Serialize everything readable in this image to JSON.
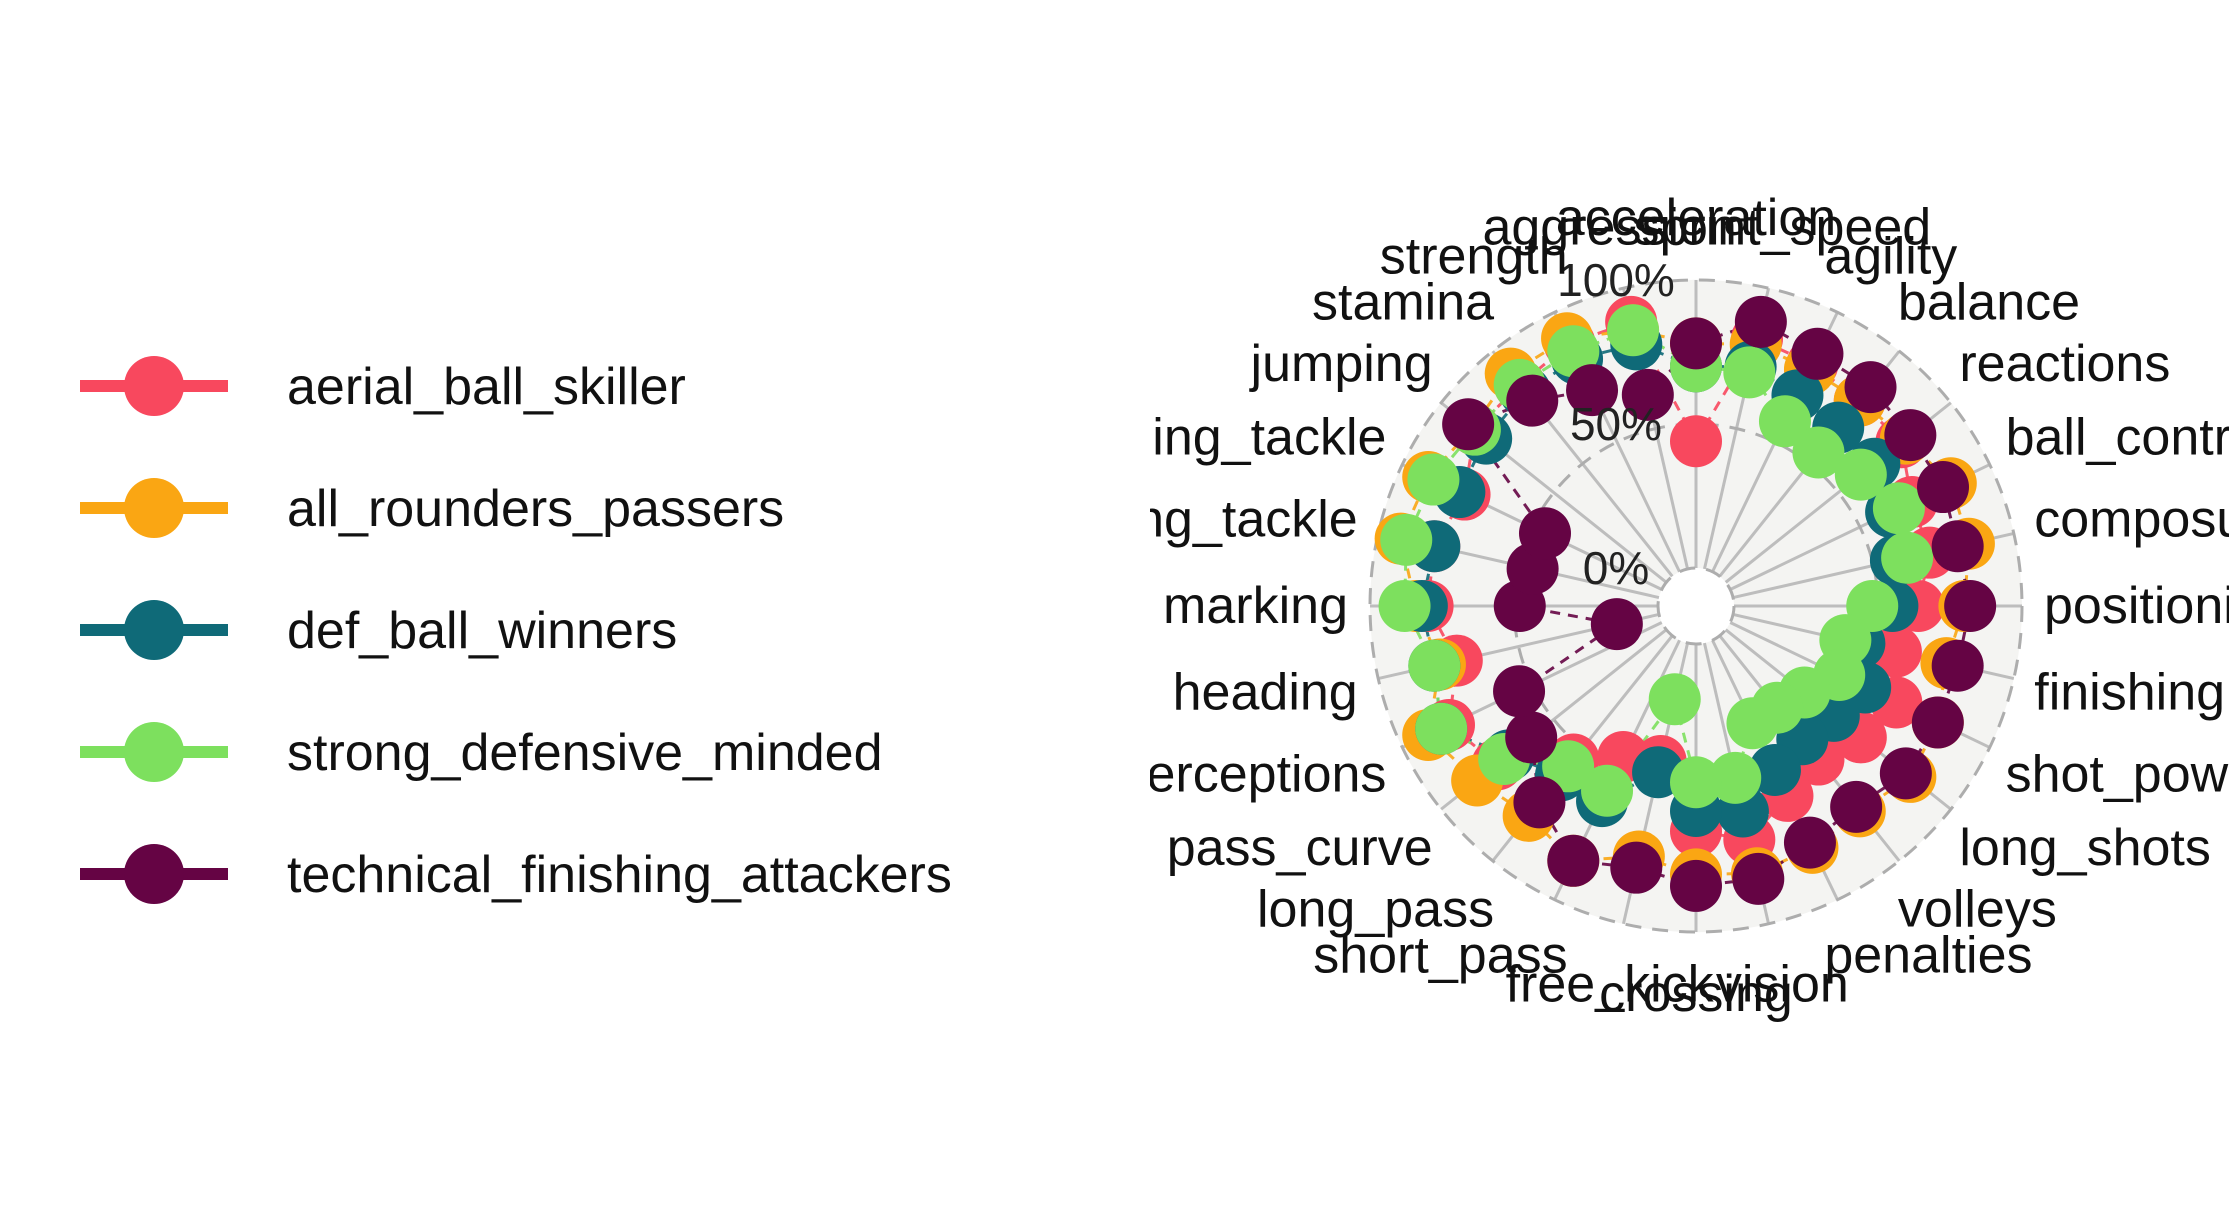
{
  "chart_data": {
    "type": "radar",
    "title": "",
    "axis_range": [
      0,
      1
    ],
    "radial_labels": [
      "0%",
      "50%",
      "100%"
    ],
    "grid": true,
    "legend_position": "left",
    "categories": [
      "acceleration",
      "sprint_speed",
      "agility",
      "balance",
      "reactions",
      "ball_control",
      "composure",
      "positioning",
      "finishing",
      "shot_power",
      "long_shots",
      "volleys",
      "penalties",
      "vision",
      "crossing",
      "free_kick",
      "short_pass",
      "long_pass",
      "pass_curve",
      "interceptions",
      "heading",
      "marking",
      "standing_tackle",
      "sliding_tackle",
      "jumping",
      "stamina",
      "strength",
      "aggression"
    ],
    "series": [
      {
        "name": "aerial_ball_skiller",
        "color": "#F8485E",
        "values": [
          0.44,
          0.82,
          0.8,
          0.78,
          0.78,
          0.7,
          0.7,
          0.64,
          0.58,
          0.64,
          0.6,
          0.55,
          0.6,
          0.7,
          0.65,
          0.42,
          0.45,
          0.55,
          0.75,
          0.82,
          0.72,
          0.8,
          0.8,
          0.76,
          0.85,
          0.85,
          0.88,
          0.88
        ]
      },
      {
        "name": "all_rounders_passers",
        "color": "#FAA613",
        "values": [
          0.78,
          0.8,
          0.78,
          0.78,
          0.8,
          0.85,
          0.84,
          0.8,
          0.76,
          0.8,
          0.82,
          0.78,
          0.8,
          0.82,
          0.8,
          0.76,
          0.85,
          0.8,
          0.84,
          0.9,
          0.78,
          0.84,
          0.92,
          0.9,
          0.86,
          0.9,
          0.9,
          0.85
        ]
      },
      {
        "name": "def_ball_winners",
        "color": "#0F6A78",
        "values": [
          0.7,
          0.72,
          0.68,
          0.66,
          0.66,
          0.62,
          0.58,
          0.55,
          0.45,
          0.52,
          0.48,
          0.46,
          0.5,
          0.6,
          0.58,
          0.46,
          0.62,
          0.62,
          0.7,
          0.85,
          0.8,
          0.82,
          0.8,
          0.78,
          0.8,
          0.82,
          0.82,
          0.8
        ]
      },
      {
        "name": "strong_defensive_minded",
        "color": "#7DE05E",
        "values": [
          0.7,
          0.7,
          0.58,
          0.55,
          0.6,
          0.65,
          0.62,
          0.48,
          0.4,
          0.42,
          0.35,
          0.32,
          0.32,
          0.48,
          0.48,
          0.2,
          0.58,
          0.58,
          0.72,
          0.85,
          0.8,
          0.88,
          0.9,
          0.88,
          0.85,
          0.85,
          0.85,
          0.85
        ]
      },
      {
        "name": "technical_finishing_attackers",
        "color": "#650444",
        "values": [
          0.78,
          0.88,
          0.84,
          0.84,
          0.82,
          0.82,
          0.8,
          0.82,
          0.8,
          0.8,
          0.8,
          0.76,
          0.78,
          0.84,
          0.84,
          0.8,
          0.85,
          0.74,
          0.6,
          0.55,
          0.15,
          0.48,
          0.45,
          0.45,
          0.88,
          0.78,
          0.7,
          0.62
        ]
      }
    ]
  }
}
